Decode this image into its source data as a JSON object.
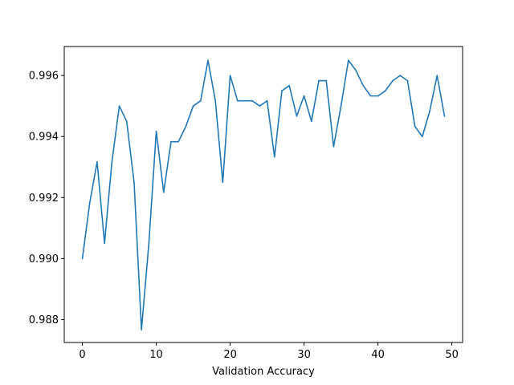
{
  "chart_data": {
    "type": "line",
    "title": "",
    "xlabel": "Validation Accuracy",
    "ylabel": "",
    "xlim": [
      -2.45,
      51.45
    ],
    "ylim": [
      0.98725,
      0.99695
    ],
    "grid": false,
    "x_ticks": [
      0,
      10,
      20,
      30,
      40,
      50
    ],
    "x_tick_labels": [
      "0",
      "10",
      "20",
      "30",
      "40",
      "50"
    ],
    "y_ticks": [
      0.988,
      0.99,
      0.992,
      0.994,
      0.996
    ],
    "y_tick_labels": [
      "0.988",
      "0.990",
      "0.992",
      "0.994",
      "0.996"
    ],
    "series": [
      {
        "color": "#1f77b4",
        "x": [
          0,
          1,
          2,
          3,
          4,
          5,
          6,
          7,
          8,
          9,
          10,
          11,
          12,
          13,
          14,
          15,
          16,
          17,
          18,
          19,
          20,
          21,
          22,
          23,
          24,
          25,
          26,
          27,
          28,
          29,
          30,
          31,
          32,
          33,
          34,
          35,
          36,
          37,
          38,
          39,
          40,
          41,
          42,
          43,
          44,
          45,
          46,
          47,
          48,
          49
        ],
        "values": [
          0.99,
          0.99183,
          0.99317,
          0.9905,
          0.99317,
          0.995,
          0.9945,
          0.9925,
          0.98767,
          0.9905,
          0.99417,
          0.99217,
          0.99383,
          0.99383,
          0.99433,
          0.995,
          0.99517,
          0.9965,
          0.99517,
          0.9925,
          0.996,
          0.99517,
          0.99517,
          0.99517,
          0.995,
          0.99517,
          0.99333,
          0.9955,
          0.99567,
          0.99467,
          0.99533,
          0.9945,
          0.99583,
          0.99583,
          0.99367,
          0.995,
          0.9965,
          0.99617,
          0.99567,
          0.99533,
          0.99533,
          0.9955,
          0.99583,
          0.996,
          0.99583,
          0.99433,
          0.994,
          0.99483,
          0.996,
          0.99467
        ]
      }
    ]
  }
}
